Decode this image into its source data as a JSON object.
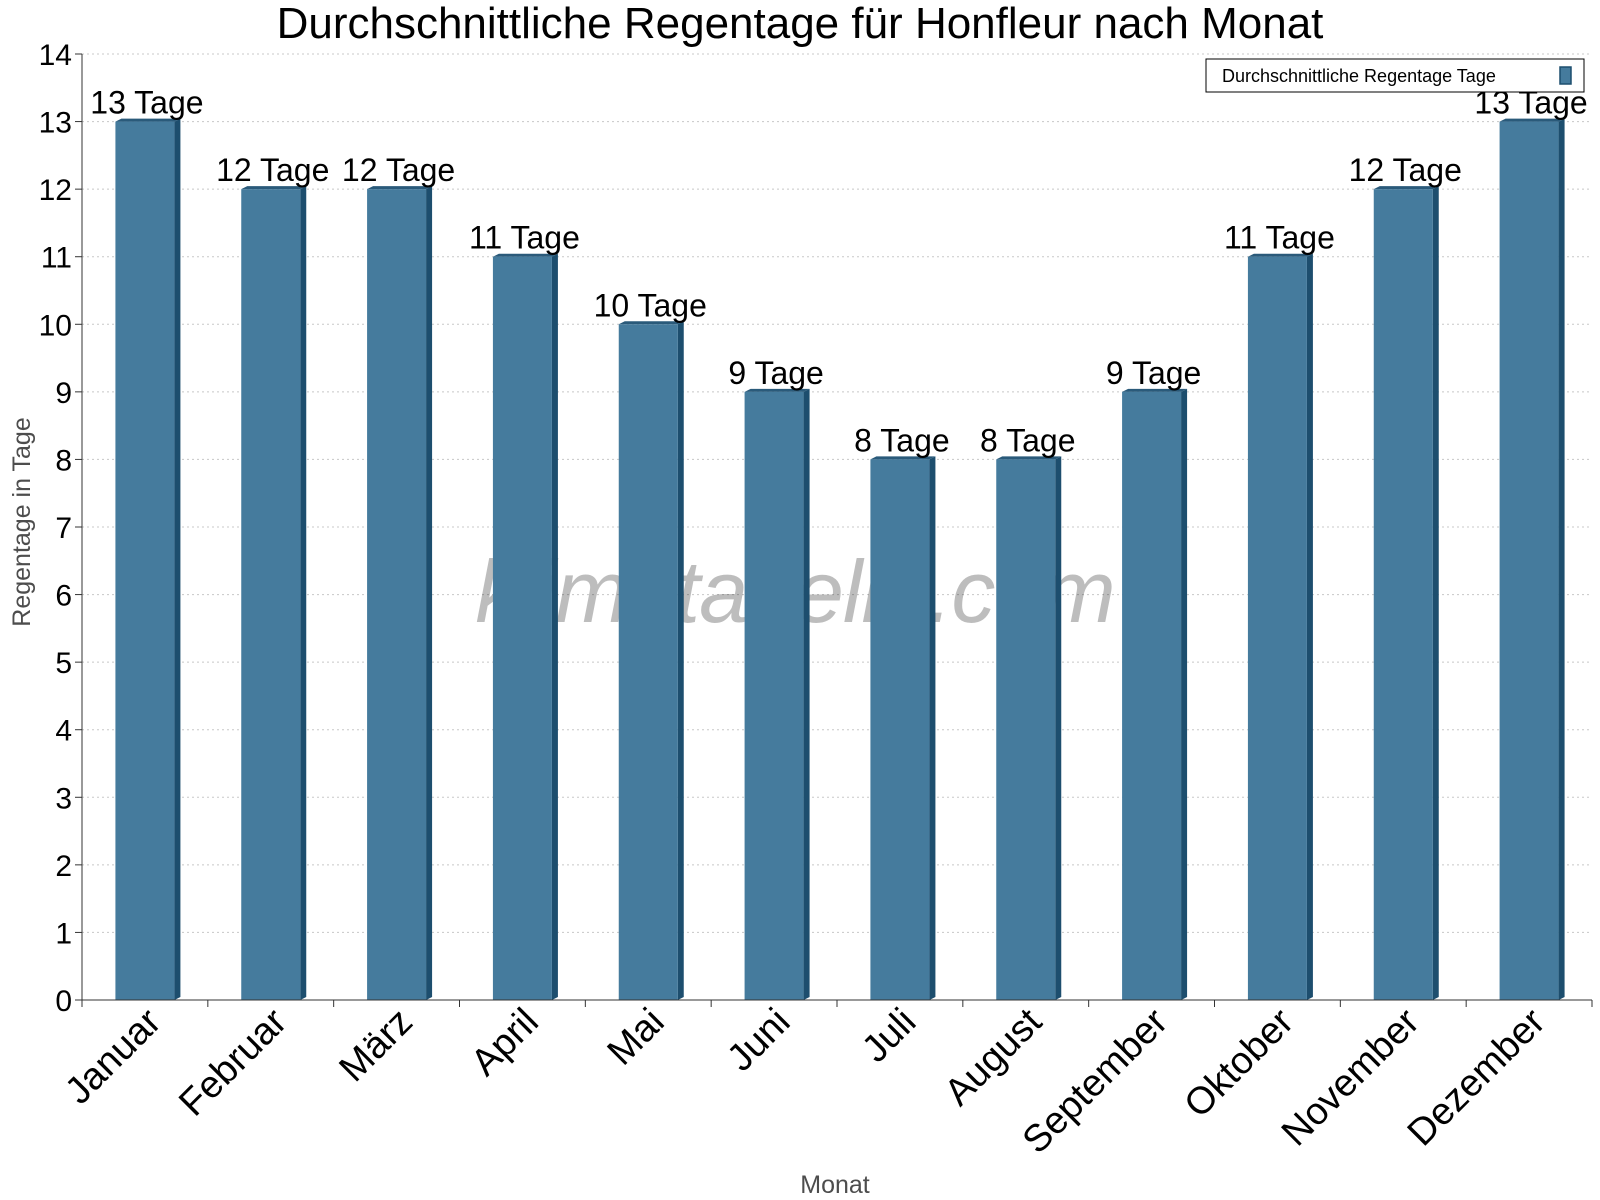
{
  "chart_data": {
    "type": "bar",
    "title": "Durchschnittliche Regentage für Honfleur nach Monat",
    "xlabel": "Monat",
    "ylabel": "Regentage in Tage",
    "categories": [
      "Januar",
      "Februar",
      "März",
      "April",
      "Mai",
      "Juni",
      "Juli",
      "August",
      "September",
      "Oktober",
      "November",
      "Dezember"
    ],
    "series": [
      {
        "name": "Durchschnittliche Regentage Tage",
        "values": [
          13,
          12,
          12,
          11,
          10,
          9,
          8,
          8,
          9,
          11,
          12,
          13
        ],
        "data_labels": [
          "13 Tage",
          "12 Tage",
          "12 Tage",
          "11 Tage",
          "10 Tage",
          "9 Tage",
          "8 Tage",
          "8 Tage",
          "9 Tage",
          "11 Tage",
          "12 Tage",
          "13 Tage"
        ]
      }
    ],
    "ylim": [
      0,
      14
    ],
    "yticks": [
      "0",
      "1",
      "2",
      "3",
      "4",
      "5",
      "6",
      "7",
      "8",
      "9",
      "10",
      "11",
      "12",
      "13",
      "14"
    ],
    "grid": true,
    "legend_position": "top-right",
    "colors": {
      "bar": "#457b9d",
      "bar_top": "#2a5a7a",
      "bar_side": "#1d4e6e",
      "grid": "#c8c8c8",
      "axis": "#333333"
    }
  },
  "watermark": "klimatabelle.com"
}
